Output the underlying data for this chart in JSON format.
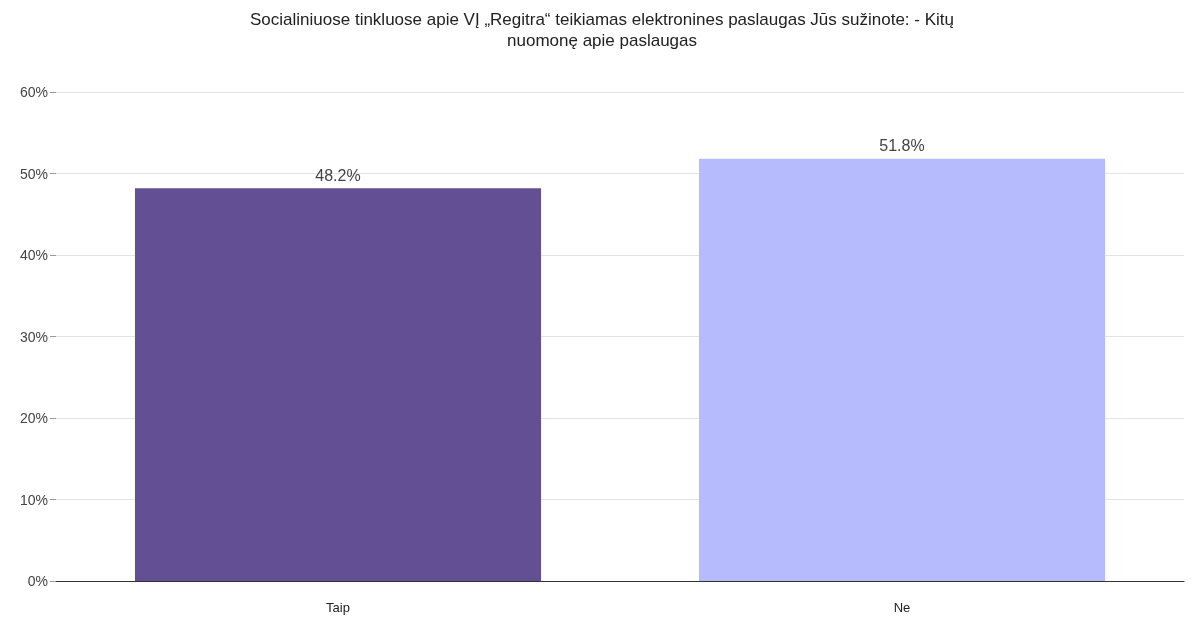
{
  "chart_data": {
    "type": "bar",
    "title": "Socialiniuose tinkluose apie VĮ „Regitra“ teikiamas elektronines paslaugas Jūs sužinote: - Kitų\nnuomonę apie paslaugas",
    "categories": [
      "Taip",
      "Ne"
    ],
    "values": [
      48.2,
      51.8
    ],
    "colors": [
      "#634f94",
      "#b6bbfd"
    ],
    "value_labels": [
      "48.2%",
      "51.8%"
    ],
    "ylim": [
      0,
      60
    ],
    "yticks": [
      {
        "value": 0,
        "label": "0%"
      },
      {
        "value": 10,
        "label": "10%"
      },
      {
        "value": 20,
        "label": "20%"
      },
      {
        "value": 30,
        "label": "30%"
      },
      {
        "value": 40,
        "label": "40%"
      },
      {
        "value": 50,
        "label": "50%"
      },
      {
        "value": 60,
        "label": "60%"
      }
    ],
    "grid": "y"
  }
}
